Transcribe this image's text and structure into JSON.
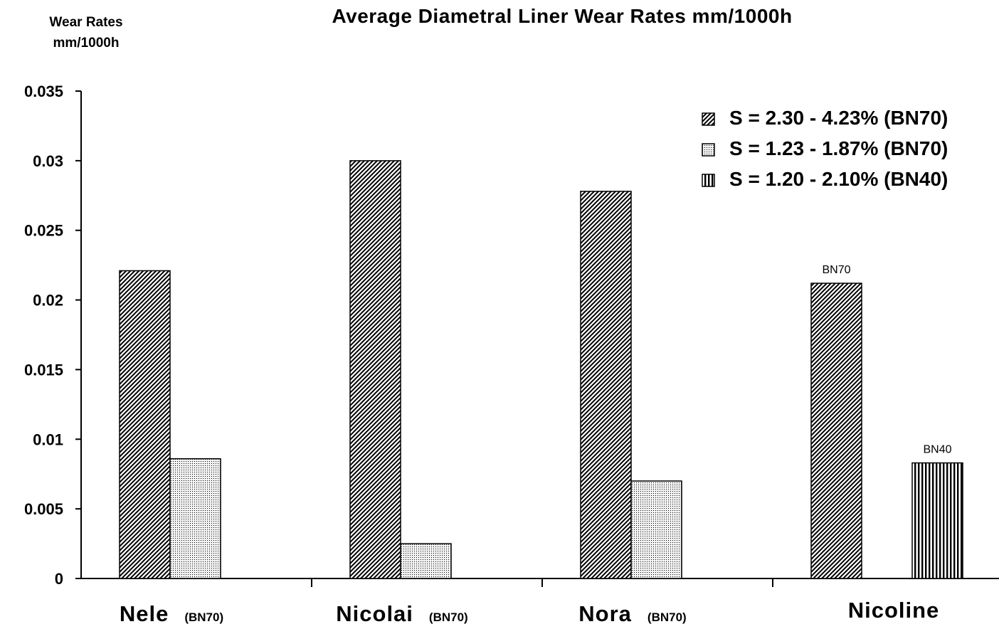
{
  "chart_data": {
    "type": "bar",
    "title": "Average Diametral Liner Wear Rates mm/1000h",
    "ylabel_line1": "Wear Rates",
    "ylabel_line2": "mm/1000h",
    "xlabel": "",
    "ylim": [
      0,
      0.035
    ],
    "yticks": [
      "0",
      "0.005",
      "0.01",
      "0.015",
      "0.02",
      "0.025",
      "0.03",
      "0.035"
    ],
    "ytick_values": [
      0,
      0.005,
      0.01,
      0.015,
      0.02,
      0.025,
      0.03,
      0.035
    ],
    "grid": false,
    "legend_position": "top-right",
    "categories": [
      {
        "name": "Nele",
        "sub": "(BN70)"
      },
      {
        "name": "Nicolai",
        "sub": "(BN70)"
      },
      {
        "name": "Nora",
        "sub": "(BN70)"
      },
      {
        "name": "Nicoline",
        "sub": ""
      }
    ],
    "series": [
      {
        "name": "S = 2.30 - 4.23% (BN70)",
        "pattern": "diagonal",
        "values": [
          0.0221,
          0.03,
          0.0278,
          0.0212
        ]
      },
      {
        "name": "S = 1.23 - 1.87% (BN70)",
        "pattern": "dots",
        "values": [
          0.0086,
          0.0025,
          0.007,
          null
        ]
      },
      {
        "name": "S = 1.20 - 2.10% (BN40)",
        "pattern": "vertical",
        "values": [
          null,
          null,
          null,
          0.0083
        ]
      }
    ],
    "bar_labels": [
      {
        "series": 0,
        "category": 3,
        "text": "BN70"
      },
      {
        "series": 2,
        "category": 3,
        "text": "BN40"
      }
    ]
  }
}
